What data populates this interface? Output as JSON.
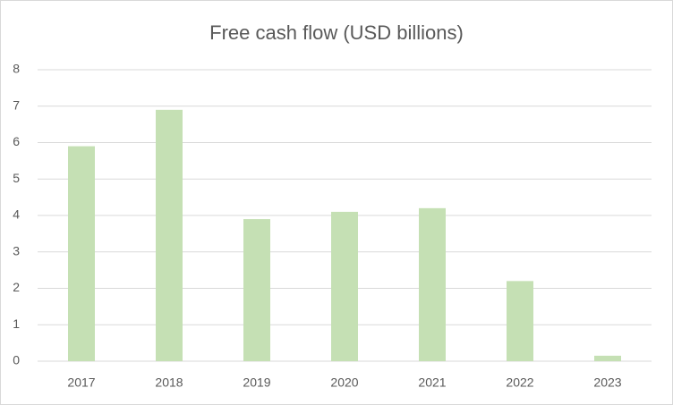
{
  "chart_data": {
    "type": "bar",
    "title": "Free cash flow (USD billions)",
    "categories": [
      "2017",
      "2018",
      "2019",
      "2020",
      "2021",
      "2022",
      "2023"
    ],
    "values": [
      5.9,
      6.9,
      3.9,
      4.1,
      4.2,
      2.2,
      0.15
    ],
    "color": "#c5e0b4",
    "ylim": [
      0,
      8
    ],
    "yticks": [
      0,
      1,
      2,
      3,
      4,
      5,
      6,
      7,
      8
    ],
    "grid": true
  }
}
